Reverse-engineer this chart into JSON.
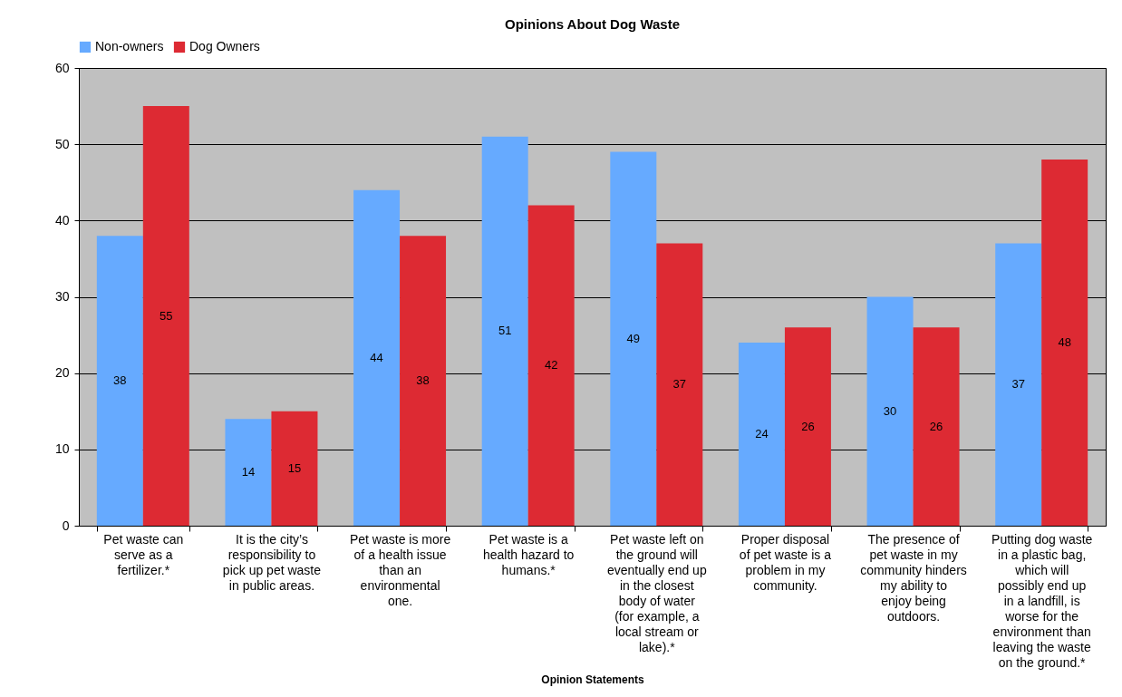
{
  "chart_data": {
    "type": "bar",
    "title": "Opinions About Dog Waste",
    "xlabel": "Opinion Statements",
    "categories": [
      "Pet waste can serve as a fertilizer.*",
      "It is the city’s responsibility to pick up pet waste in public areas.",
      "Pet waste is more of a health issue than an environmental one.",
      "Pet waste is a health hazard to humans.*",
      "Pet waste left on the ground will eventually end up in the closest body of water (for example, a local stream or lake).*",
      "Proper disposal of pet waste is a problem in my community.",
      "The presence of pet waste in my community hinders my ability to enjoy being outdoors.",
      "Putting dog waste in a plastic bag, which will possibly end up in a landfill, is worse for the environment than leaving the waste on the ground.*"
    ],
    "series": [
      {
        "name": "Non-owners",
        "color": "#66aaff",
        "values": [
          38,
          14,
          44,
          51,
          49,
          24,
          30,
          37
        ]
      },
      {
        "name": "Dog Owners",
        "color": "#dd2a33",
        "values": [
          55,
          15,
          38,
          42,
          37,
          26,
          26,
          48
        ]
      }
    ],
    "ylim": [
      0,
      60
    ],
    "yticks": [
      0,
      10,
      20,
      30,
      40,
      50,
      60
    ],
    "grid": "y",
    "legend": "top",
    "data_labels": true
  }
}
